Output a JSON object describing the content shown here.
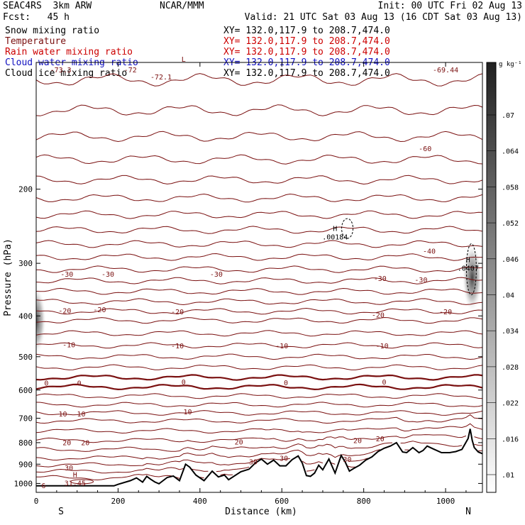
{
  "header": {
    "model": "SEAC4RS  3km ARW",
    "center": "NCAR/MMM",
    "init": "Init: 00 UTC Fri 02 Aug 13",
    "fcst": "Fcst:   45 h",
    "valid": "Valid: 21 UTC Sat 03 Aug 13 (16 CDT Sat 03 Aug 13)"
  },
  "fields": [
    {
      "name": "Snow mixing ratio",
      "xy": "XY= 132.0,117.9 to 208.7,474.0",
      "color": "#000000"
    },
    {
      "name": "Temperature",
      "xy": "XY= 132.0,117.9 to 208.7,474.0",
      "color": "#7a1010"
    },
    {
      "name": "Rain water mixing ratio",
      "xy": "XY= 132.0,117.9 to 208.7,474.0",
      "color": "#cc0000"
    },
    {
      "name": "Cloud water mixing ratio",
      "xy": "XY= 132.0,117.9 to 208.7,474.0",
      "color": "#1010c0"
    },
    {
      "name": "Cloud ice mixing ratio",
      "xy": "XY= 132.0,117.9 to 208.7,474.0",
      "color": "#000000"
    }
  ],
  "chart_data": {
    "type": "cross-section contour",
    "xlabel": "Distance (km)",
    "ylabel": "Pressure (hPa)",
    "xlim": [
      0,
      1090
    ],
    "ylim": [
      1050,
      100
    ],
    "y_log_scale": true,
    "x_ticks": [
      0,
      200,
      400,
      600,
      800,
      1000
    ],
    "x_tick_labels": [
      "0",
      "200",
      "400",
      "600",
      "800",
      "1000"
    ],
    "y_ticks": [
      200,
      300,
      400,
      500,
      600,
      700,
      800,
      900,
      1000
    ],
    "y_tick_labels": [
      "200",
      "300",
      "400",
      "500",
      "600",
      "700",
      "800",
      "900",
      "1000"
    ],
    "end_labels": {
      "left": "S",
      "right": "N"
    },
    "colorbar": {
      "unit": "g kg⁻¹",
      "tick_labels": [
        ".01",
        ".016",
        ".022",
        ".028",
        ".034",
        ".04",
        ".046",
        ".052",
        ".058",
        ".064",
        ".07"
      ]
    },
    "temperature_contours": {
      "interval": 5,
      "color": "#7a1010",
      "labels": [
        {
          "value": "-72.1",
          "x": 305,
          "p": 108
        },
        {
          "value": "-72",
          "x": 230,
          "p": 104
        },
        {
          "value": "-73.3",
          "x": 60,
          "p": 104
        },
        {
          "value": "-69.44",
          "x": 1000,
          "p": 104
        },
        {
          "value": "-60",
          "x": 950,
          "p": 160
        },
        {
          "value": "-40",
          "x": 960,
          "p": 280
        },
        {
          "value": "-30",
          "x": 75,
          "p": 318
        },
        {
          "value": "-30",
          "x": 175,
          "p": 318
        },
        {
          "value": "-30",
          "x": 440,
          "p": 318
        },
        {
          "value": "-30",
          "x": 840,
          "p": 325
        },
        {
          "value": "-30",
          "x": 940,
          "p": 328
        },
        {
          "value": "-20",
          "x": 70,
          "p": 388
        },
        {
          "value": "-20",
          "x": 155,
          "p": 386
        },
        {
          "value": "-20",
          "x": 345,
          "p": 390
        },
        {
          "value": "-20",
          "x": 835,
          "p": 397
        },
        {
          "value": "-20",
          "x": 1000,
          "p": 390
        },
        {
          "value": "-10",
          "x": 80,
          "p": 468
        },
        {
          "value": "-10",
          "x": 345,
          "p": 470
        },
        {
          "value": "-10",
          "x": 600,
          "p": 470
        },
        {
          "value": "-10",
          "x": 845,
          "p": 470
        },
        {
          "value": "0",
          "x": 25,
          "p": 577
        },
        {
          "value": "0",
          "x": 105,
          "p": 577
        },
        {
          "value": "0",
          "x": 360,
          "p": 573
        },
        {
          "value": "0",
          "x": 610,
          "p": 575
        },
        {
          "value": "0",
          "x": 850,
          "p": 573
        },
        {
          "value": "10",
          "x": 65,
          "p": 683
        },
        {
          "value": "10",
          "x": 110,
          "p": 683
        },
        {
          "value": "10",
          "x": 370,
          "p": 675
        },
        {
          "value": "20",
          "x": 75,
          "p": 798
        },
        {
          "value": "20",
          "x": 120,
          "p": 798
        },
        {
          "value": "20",
          "x": 495,
          "p": 795
        },
        {
          "value": "20",
          "x": 785,
          "p": 790
        },
        {
          "value": "20",
          "x": 840,
          "p": 782
        },
        {
          "value": "30",
          "x": 80,
          "p": 917
        },
        {
          "value": "30",
          "x": 530,
          "p": 887
        },
        {
          "value": "30",
          "x": 605,
          "p": 870
        },
        {
          "value": "30",
          "x": 760,
          "p": 875
        },
        {
          "value": "6",
          "x": 18,
          "p": 1010
        }
      ]
    },
    "extrema": [
      {
        "symbol": "H",
        "value": "31.45",
        "x": 95,
        "p": 988,
        "color": "#7a1010"
      },
      {
        "symbol": "H",
        "value": ".00184",
        "x": 730,
        "p": 257,
        "color": "#000000"
      },
      {
        "symbol": "H",
        "value": ".0407",
        "x": 1055,
        "p": 305,
        "color": "#000000"
      },
      {
        "symbol": "L",
        "value": "",
        "x": 360,
        "p": 102,
        "color": "#7a1010"
      }
    ],
    "terrain": {
      "x": [
        0,
        190,
        200,
        230,
        245,
        260,
        270,
        280,
        290,
        300,
        320,
        335,
        350,
        365,
        375,
        390,
        410,
        430,
        445,
        460,
        470,
        500,
        520,
        535,
        550,
        565,
        580,
        595,
        610,
        625,
        640,
        650,
        660,
        670,
        680,
        690,
        700,
        715,
        730,
        745,
        755,
        765,
        775,
        790,
        805,
        820,
        835,
        850,
        865,
        880,
        895,
        905,
        920,
        935,
        945,
        955,
        970,
        990,
        1010,
        1025,
        1040,
        1055,
        1060,
        1065,
        1070,
        1080,
        1090
      ],
      "p": [
        1013,
        1013,
        1005,
        985,
        970,
        993,
        962,
        978,
        992,
        1002,
        968,
        960,
        985,
        900,
        915,
        955,
        985,
        935,
        965,
        955,
        980,
        938,
        925,
        895,
        875,
        900,
        880,
        908,
        908,
        878,
        860,
        895,
        958,
        962,
        945,
        905,
        928,
        875,
        945,
        858,
        890,
        935,
        922,
        905,
        880,
        865,
        840,
        825,
        815,
        800,
        842,
        845,
        822,
        845,
        835,
        815,
        828,
        845,
        845,
        840,
        830,
        782,
        742,
        790,
        822,
        842,
        850
      ]
    },
    "shading": [
      {
        "x": 0,
        "p": 410,
        "value": 0.04,
        "field": "Cloud ice mixing ratio"
      },
      {
        "x": 1065,
        "p": 325,
        "value": 0.0407,
        "field": "Cloud ice mixing ratio"
      }
    ]
  }
}
